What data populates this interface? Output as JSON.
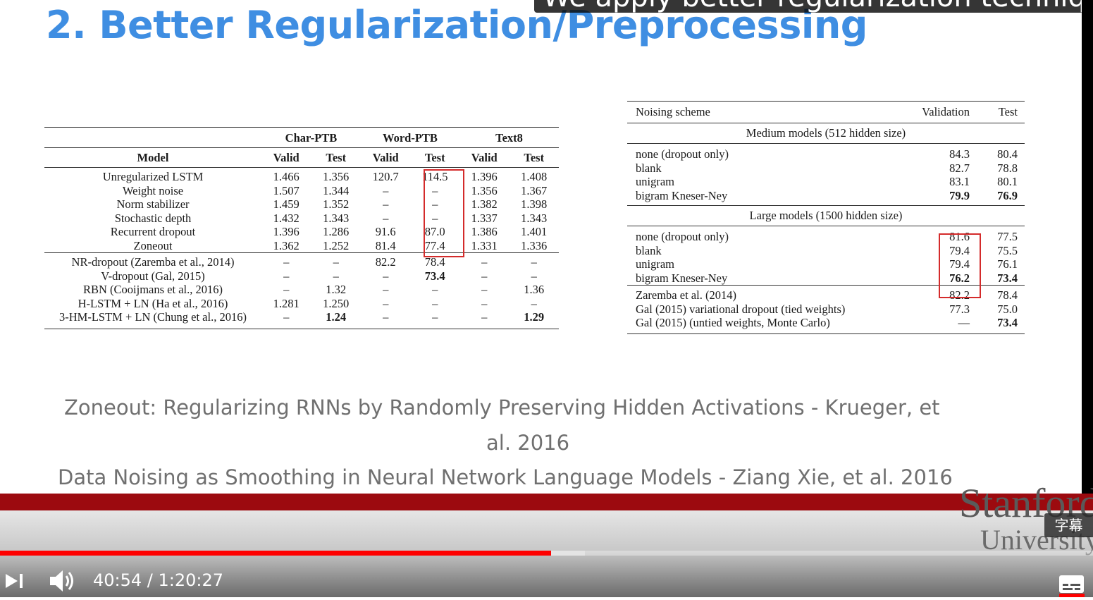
{
  "caption_text": "We apply better regularization technique",
  "slide": {
    "title": "2. Better Regularization/Preprocessing",
    "refs": [
      "Zoneout: Regularizing RNNs by Randomly Preserving Hidden Activations -  Krueger, et",
      "al. 2016",
      "Data Noising as Smoothing in Neural Network Language Models - Ziang Xie, et al. 2016"
    ]
  },
  "table_left": {
    "groups": [
      "Char-PTB",
      "Word-PTB",
      "Text8"
    ],
    "headers": [
      "Model",
      "Valid",
      "Test",
      "Valid",
      "Test",
      "Valid",
      "Test"
    ],
    "rows_a": [
      [
        "Unregularized LSTM",
        "1.466",
        "1.356",
        "120.7",
        "114.5",
        "1.396",
        "1.408"
      ],
      [
        "Weight noise",
        "1.507",
        "1.344",
        "–",
        "–",
        "1.356",
        "1.367"
      ],
      [
        "Norm stabilizer",
        "1.459",
        "1.352",
        "–",
        "–",
        "1.382",
        "1.398"
      ],
      [
        "Stochastic depth",
        "1.432",
        "1.343",
        "–",
        "–",
        "1.337",
        "1.343"
      ],
      [
        "Recurrent dropout",
        "1.396",
        "1.286",
        "91.6",
        "87.0",
        "1.386",
        "1.401"
      ],
      [
        "Zoneout",
        "1.362",
        "1.252",
        "81.4",
        "77.4",
        "1.331",
        "1.336"
      ]
    ],
    "rows_b": [
      [
        "NR-dropout (Zaremba et al., 2014)",
        "–",
        "–",
        "82.2",
        "78.4",
        "–",
        "–"
      ],
      [
        "V-dropout (Gal, 2015)",
        "–",
        "–",
        "–",
        "73.4",
        "–",
        "–"
      ],
      [
        "RBN (Cooijmans et al., 2016)",
        "–",
        "1.32",
        "–",
        "–",
        "–",
        "1.36"
      ],
      [
        "H-LSTM + LN (Ha et al., 2016)",
        "1.281",
        "1.250",
        "–",
        "–",
        "–",
        "–"
      ],
      [
        "3-HM-LSTM + LN (Chung et al., 2016)",
        "–",
        "1.24",
        "–",
        "–",
        "–",
        "1.29"
      ]
    ]
  },
  "table_right": {
    "headers": [
      "Noising scheme",
      "Validation",
      "Test"
    ],
    "medium_label": "Medium models (512 hidden size)",
    "medium_rows": [
      [
        "none (dropout only)",
        "84.3",
        "80.4"
      ],
      [
        "blank",
        "82.7",
        "78.8"
      ],
      [
        "unigram",
        "83.1",
        "80.1"
      ],
      [
        "bigram Kneser-Ney",
        "79.9",
        "76.9"
      ]
    ],
    "large_label": "Large models (1500 hidden size)",
    "large_rows": [
      [
        "none (dropout only)",
        "81.6",
        "77.5"
      ],
      [
        "blank",
        "79.4",
        "75.5"
      ],
      [
        "unigram",
        "79.4",
        "76.1"
      ],
      [
        "bigram Kneser-Ney",
        "76.2",
        "73.4"
      ]
    ],
    "ref_rows": [
      [
        "Zaremba et al. (2014)",
        "82.2",
        "78.4"
      ],
      [
        "Gal (2015) variational dropout (tied weights)",
        "77.3",
        "75.0"
      ],
      [
        "Gal (2015) (untied weights, Monte Carlo)",
        "—",
        "73.4"
      ]
    ]
  },
  "player": {
    "time_current": "40:54",
    "time_sep": " / ",
    "time_total": "1:20:27",
    "progress_played_fraction": 0.504,
    "progress_loaded_fraction": 0.535,
    "subtitles_badge": "字幕",
    "logo_line1": "Stanford",
    "logo_line2": "University",
    "next_icon": "skip-next-icon",
    "volume_icon": "volume-icon",
    "cc_icon": "subtitles-icon",
    "accent_color": "#ff0000",
    "band_color": "#9c0a0f",
    "title_color": "#3f8ee2"
  }
}
